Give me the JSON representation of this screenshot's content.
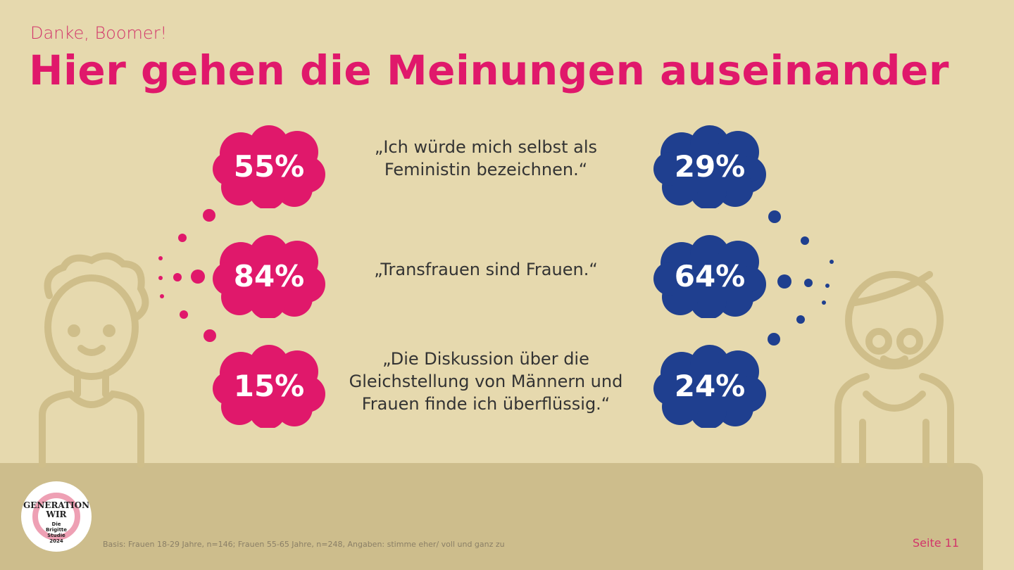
{
  "header": {
    "kicker": "Danke, Boomer!",
    "title": "Hier gehen die Meinungen auseinander"
  },
  "colors": {
    "young": "#e0186b",
    "old": "#1f3f8f",
    "background": "#e6d9ae",
    "footer": "#cdbd8c"
  },
  "rows": [
    {
      "statement": "„Ich würde mich selbst als\nFeministin bezeichnen.“",
      "young": "55%",
      "old": "29%"
    },
    {
      "statement": "„Transfrauen sind Frauen.“",
      "young": "84%",
      "old": "64%"
    },
    {
      "statement": "„Die Diskussion über die\nGleichstellung von Männern und\nFrauen finde ich überflüssig.“",
      "young": "15%",
      "old": "24%"
    }
  ],
  "footer": {
    "basis": "Basis: Frauen 18-29 Jahre, n=146; Frauen 55-65 Jahre, n=248, Angaben: stimme eher/ voll und ganz zu",
    "page": "Seite 11"
  },
  "logo": {
    "line1": "GENERATION",
    "line2": "WIR",
    "line3": "Die",
    "line4": "Brigitte",
    "line5": "Studie",
    "line6": "2024"
  }
}
